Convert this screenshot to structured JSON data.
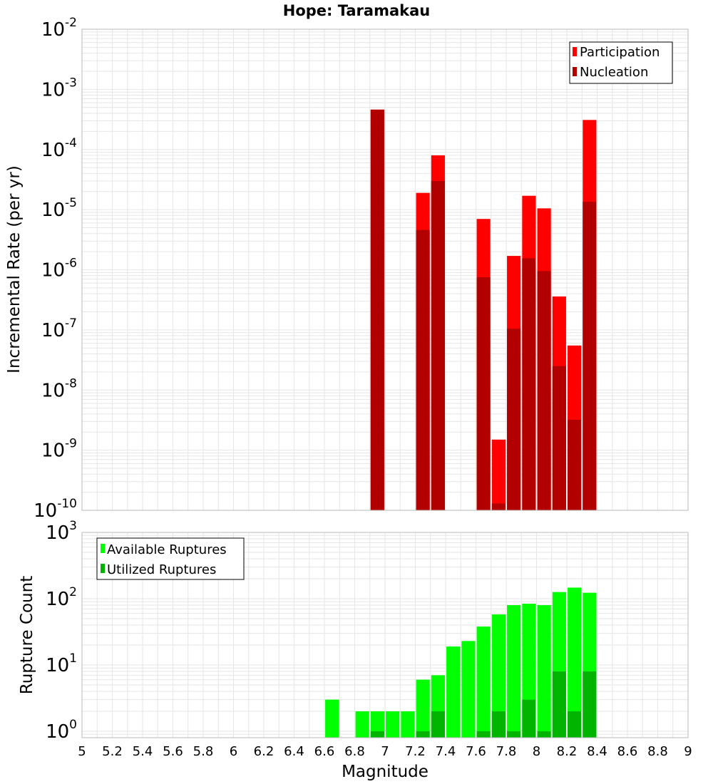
{
  "chart_data": [
    {
      "type": "bar",
      "title": "Hope: Taramakau",
      "xlabel": "",
      "ylabel": "Incremental Rate (per yr)",
      "yscale": "log",
      "xlim": [
        5,
        9
      ],
      "ylim": [
        1e-10,
        0.01
      ],
      "ytick_base": "10",
      "ytick_exponents": [
        "-10",
        "-9",
        "-8",
        "-7",
        "-6",
        "-5",
        "-4",
        "-3",
        "-2"
      ],
      "grid": true,
      "legend_position": "top-right",
      "bar_width": 0.09,
      "series": [
        {
          "name": "Participation",
          "color": "#ff0000",
          "points": [
            {
              "x": 6.95,
              "y": 0.00046
            },
            {
              "x": 7.25,
              "y": 1.9e-05
            },
            {
              "x": 7.35,
              "y": 8e-05
            },
            {
              "x": 7.65,
              "y": 7e-06
            },
            {
              "x": 7.75,
              "y": 1.5e-09
            },
            {
              "x": 7.85,
              "y": 1.7e-06
            },
            {
              "x": 7.95,
              "y": 1.7e-05
            },
            {
              "x": 8.05,
              "y": 1.05e-05
            },
            {
              "x": 8.15,
              "y": 3.6e-07
            },
            {
              "x": 8.25,
              "y": 5.5e-08
            },
            {
              "x": 8.35,
              "y": 0.00031
            }
          ]
        },
        {
          "name": "Nucleation",
          "color": "#b20000",
          "points": [
            {
              "x": 6.95,
              "y": 0.00046
            },
            {
              "x": 7.25,
              "y": 4.6e-06
            },
            {
              "x": 7.35,
              "y": 3e-05
            },
            {
              "x": 7.65,
              "y": 7.5e-07
            },
            {
              "x": 7.75,
              "y": 1.3e-10
            },
            {
              "x": 7.85,
              "y": 1.05e-07
            },
            {
              "x": 7.95,
              "y": 1.55e-06
            },
            {
              "x": 8.05,
              "y": 9.5e-07
            },
            {
              "x": 8.15,
              "y": 2.5e-08
            },
            {
              "x": 8.25,
              "y": 3.2e-09
            },
            {
              "x": 8.35,
              "y": 1.35e-05
            }
          ]
        }
      ]
    },
    {
      "type": "bar",
      "title": "",
      "xlabel": "Magnitude",
      "ylabel": "Rupture Count",
      "yscale": "log",
      "xlim": [
        5,
        9
      ],
      "ylim": [
        0.8,
        1000
      ],
      "ytick_base": "10",
      "ytick_exponents": [
        "0",
        "1",
        "2",
        "3"
      ],
      "x_ticks": [
        "5",
        "5.2",
        "5.4",
        "5.6",
        "5.8",
        "6",
        "6.2",
        "6.4",
        "6.6",
        "6.8",
        "7",
        "7.2",
        "7.4",
        "7.6",
        "7.8",
        "8",
        "8.2",
        "8.4",
        "8.6",
        "8.8",
        "9"
      ],
      "grid": true,
      "legend_position": "top-left",
      "bar_width": 0.09,
      "series": [
        {
          "name": "Available Ruptures",
          "color": "#00ff00",
          "points": [
            {
              "x": 6.65,
              "y": 3
            },
            {
              "x": 6.85,
              "y": 2
            },
            {
              "x": 6.95,
              "y": 2
            },
            {
              "x": 7.05,
              "y": 2
            },
            {
              "x": 7.15,
              "y": 2
            },
            {
              "x": 7.25,
              "y": 6
            },
            {
              "x": 7.35,
              "y": 7
            },
            {
              "x": 7.45,
              "y": 19
            },
            {
              "x": 7.55,
              "y": 23
            },
            {
              "x": 7.65,
              "y": 38
            },
            {
              "x": 7.75,
              "y": 58
            },
            {
              "x": 7.85,
              "y": 80
            },
            {
              "x": 7.95,
              "y": 84
            },
            {
              "x": 8.05,
              "y": 80
            },
            {
              "x": 8.15,
              "y": 126
            },
            {
              "x": 8.25,
              "y": 147
            },
            {
              "x": 8.35,
              "y": 123
            }
          ]
        },
        {
          "name": "Utilized Ruptures",
          "color": "#00b400",
          "points": [
            {
              "x": 6.95,
              "y": 1
            },
            {
              "x": 7.25,
              "y": 1
            },
            {
              "x": 7.35,
              "y": 2
            },
            {
              "x": 7.65,
              "y": 1
            },
            {
              "x": 7.75,
              "y": 2
            },
            {
              "x": 7.85,
              "y": 1
            },
            {
              "x": 7.95,
              "y": 3
            },
            {
              "x": 8.05,
              "y": 1
            },
            {
              "x": 8.15,
              "y": 8
            },
            {
              "x": 8.25,
              "y": 2
            },
            {
              "x": 8.35,
              "y": 8
            }
          ]
        }
      ]
    }
  ]
}
